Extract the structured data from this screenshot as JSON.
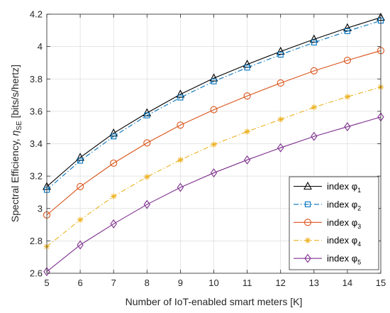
{
  "chart_data": {
    "type": "line",
    "xlabel": "Number of IoT-enabled smart meters [K]",
    "ylabel": {
      "prefix": "Spectral Efficiency, ",
      "symbol": "η",
      "subscript": "SE",
      "unit": "  [bits/s/hertz]"
    },
    "xlim": [
      5,
      15
    ],
    "ylim": [
      2.6,
      4.2
    ],
    "x_ticks": [
      5,
      6,
      7,
      8,
      9,
      10,
      11,
      12,
      13,
      14,
      15
    ],
    "y_ticks": [
      2.6,
      2.8,
      3,
      3.2,
      3.4,
      3.6,
      3.8,
      4,
      4.2
    ],
    "y_tick_labels": [
      "2.6",
      "2.8",
      "3",
      "3.2",
      "3.4",
      "3.6",
      "3.8",
      "4",
      "4.2"
    ],
    "grid": true,
    "legend_position": "bottom-right",
    "x": [
      5,
      6,
      7,
      8,
      9,
      10,
      11,
      12,
      13,
      14,
      15
    ],
    "series": [
      {
        "name": "index φ1",
        "label_main": "index φ",
        "label_sub": "1",
        "color": "#000000",
        "marker": "triangle",
        "dash": "solid",
        "values": [
          3.135,
          3.315,
          3.465,
          3.59,
          3.705,
          3.805,
          3.89,
          3.97,
          4.045,
          4.115,
          4.18
        ]
      },
      {
        "name": "index φ2",
        "label_main": "index φ",
        "label_sub": "2",
        "color": "#0072BD",
        "marker": "square",
        "dash": "dashdot",
        "values": [
          3.115,
          3.295,
          3.445,
          3.575,
          3.685,
          3.785,
          3.87,
          3.95,
          4.025,
          4.095,
          4.16
        ]
      },
      {
        "name": "index φ3",
        "label_main": "index φ",
        "label_sub": "3",
        "color": "#D95319",
        "marker": "circle",
        "dash": "solid",
        "values": [
          2.96,
          3.135,
          3.28,
          3.405,
          3.515,
          3.61,
          3.695,
          3.775,
          3.85,
          3.915,
          3.975
        ]
      },
      {
        "name": "index φ4",
        "label_main": "index φ",
        "label_sub": "4",
        "color": "#EDB120",
        "marker": "asterisk",
        "dash": "dashdot",
        "values": [
          2.765,
          2.93,
          3.075,
          3.195,
          3.3,
          3.395,
          3.475,
          3.55,
          3.625,
          3.69,
          3.75
        ]
      },
      {
        "name": "index φ5",
        "label_main": "index φ",
        "label_sub": "5",
        "color": "#7E2F8E",
        "marker": "diamond",
        "dash": "solid",
        "values": [
          2.61,
          2.775,
          2.905,
          3.025,
          3.13,
          3.22,
          3.3,
          3.375,
          3.445,
          3.505,
          3.565
        ]
      }
    ]
  }
}
